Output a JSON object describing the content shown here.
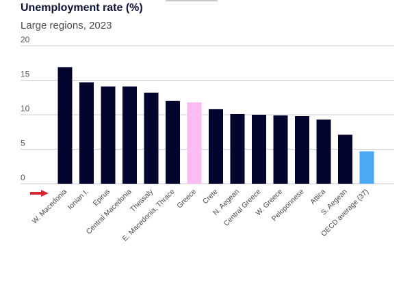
{
  "chart_data": {
    "type": "bar",
    "title": "Unemployment rate (%)",
    "subtitle": "Large regions, 2023",
    "xlabel": "",
    "ylabel": "",
    "ylim": [
      0,
      20
    ],
    "yticks": [
      0,
      5,
      10,
      15,
      20
    ],
    "grid": true,
    "categories": [
      "W. Macedonia",
      "Ionian I.",
      "Epirus",
      "Central Macedonia",
      "Thessaly",
      "E. Macedonia, Thrace",
      "Greece",
      "Crete",
      "N. Aegean",
      "Central Greece",
      "W. Greece",
      "Peloponnese",
      "Attica",
      "S. Aegean",
      "OECD average (37)"
    ],
    "values": [
      16.9,
      14.7,
      14.1,
      14.1,
      13.2,
      12.0,
      11.8,
      10.8,
      10.1,
      10.0,
      9.9,
      9.8,
      9.3,
      7.1,
      4.7
    ],
    "colors": [
      "#03042e",
      "#03042e",
      "#03042e",
      "#03042e",
      "#03042e",
      "#03042e",
      "#fbbcf3",
      "#03042e",
      "#03042e",
      "#03042e",
      "#03042e",
      "#03042e",
      "#03042e",
      "#03042e",
      "#4aa8f5"
    ],
    "marker_color": "#d12a33",
    "gridline_color": "#c9cdd3"
  }
}
